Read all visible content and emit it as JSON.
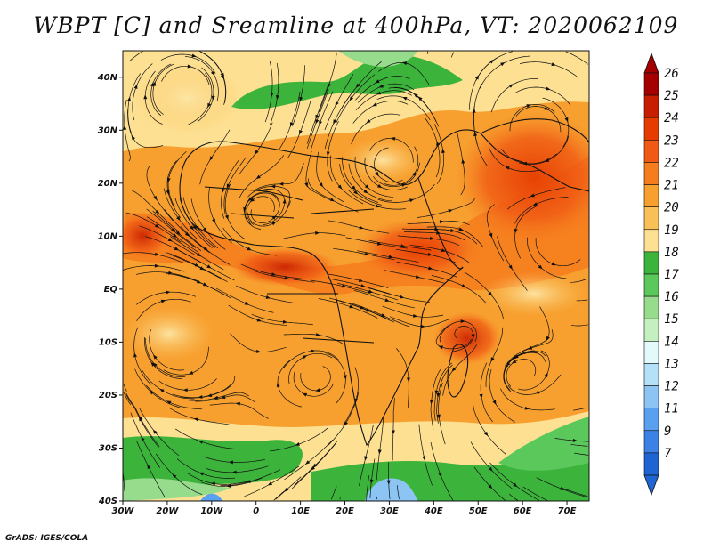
{
  "title": "WBPT [C] and Sreamline at 400hPa, VT: 2020062109",
  "credit": "GrADS: IGES/COLA",
  "map": {
    "lon_range": [
      -30,
      75
    ],
    "lat_range": [
      -40,
      45
    ],
    "lat_ticks": [
      {
        "value": 40,
        "label": "40N"
      },
      {
        "value": 30,
        "label": "30N"
      },
      {
        "value": 20,
        "label": "20N"
      },
      {
        "value": 10,
        "label": "10N"
      },
      {
        "value": 0,
        "label": "EQ"
      },
      {
        "value": -10,
        "label": "10S"
      },
      {
        "value": -20,
        "label": "20S"
      },
      {
        "value": -30,
        "label": "30S"
      },
      {
        "value": -40,
        "label": "40S"
      }
    ],
    "lon_ticks": [
      {
        "value": -30,
        "label": "30W"
      },
      {
        "value": -20,
        "label": "20W"
      },
      {
        "value": -10,
        "label": "10W"
      },
      {
        "value": 0,
        "label": "0"
      },
      {
        "value": 10,
        "label": "10E"
      },
      {
        "value": 20,
        "label": "20E"
      },
      {
        "value": 30,
        "label": "30E"
      },
      {
        "value": 40,
        "label": "40E"
      },
      {
        "value": 50,
        "label": "50E"
      },
      {
        "value": 60,
        "label": "60E"
      },
      {
        "value": 70,
        "label": "70E"
      }
    ]
  },
  "colorbar": {
    "levels": [
      {
        "label": "26",
        "color": "#a50000"
      },
      {
        "label": "25",
        "color": "#c81e00"
      },
      {
        "label": "24",
        "color": "#e63c00"
      },
      {
        "label": "23",
        "color": "#f05a14"
      },
      {
        "label": "22",
        "color": "#f57d1e"
      },
      {
        "label": "21",
        "color": "#f7a030"
      },
      {
        "label": "20",
        "color": "#fac058"
      },
      {
        "label": "19",
        "color": "#fde092"
      },
      {
        "label": "18",
        "color": "#3cb43c"
      },
      {
        "label": "17",
        "color": "#5ac85a"
      },
      {
        "label": "16",
        "color": "#96dc8c"
      },
      {
        "label": "15",
        "color": "#c4f0c0"
      },
      {
        "label": "14",
        "color": "#e4fafa"
      },
      {
        "label": "13",
        "color": "#b4e0f8"
      },
      {
        "label": "12",
        "color": "#8cc4f4"
      },
      {
        "label": "11",
        "color": "#5aa0f0"
      },
      {
        "label": "9",
        "color": "#3c82e6"
      },
      {
        "label": "7",
        "color": "#1e64d2"
      }
    ],
    "top_arrow_color": "#a50000",
    "bottom_arrow_color": "#1e64d2"
  }
}
